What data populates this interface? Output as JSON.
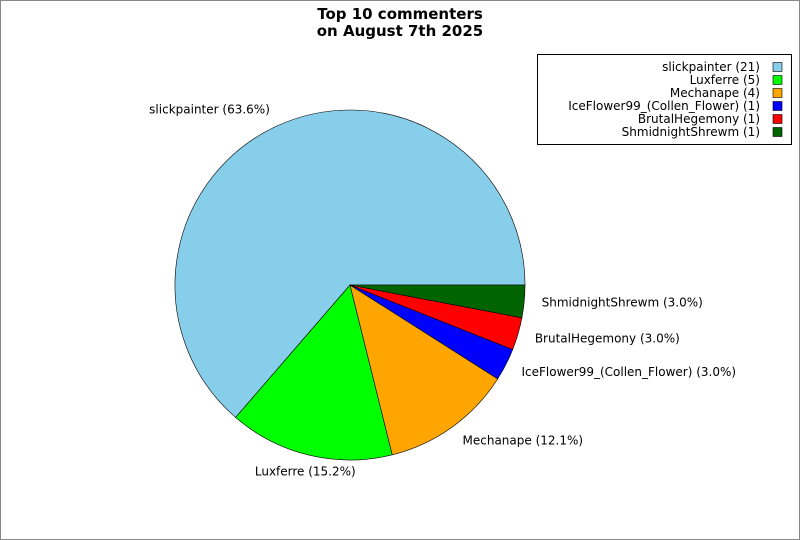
{
  "chart_data": {
    "type": "pie",
    "title": "Top 10 commenters\non August 7th 2025",
    "categories": [
      "slickpainter (21)",
      "Luxferre (5)",
      "Mechanape (4)",
      "IceFlower99_(Collen_Flower) (1)",
      "BrutalHegemony (1)",
      "ShmidnightShrewm (1)"
    ],
    "values": [
      63.6,
      15.2,
      12.1,
      3.0,
      3.0,
      3.0
    ],
    "value_labels": [
      "slickpainter (63.6%)",
      "Luxferre (15.2%)",
      "Mechanape (12.1%)",
      "IceFlower99_(Collen_Flower) (3.0%)",
      "BrutalHegemony (3.0%)",
      "ShmidnightShrewm (3.0%)"
    ],
    "colors": [
      "#87ceeb",
      "#00ff00",
      "#ffa500",
      "#0000ff",
      "#ff0000",
      "#006400"
    ],
    "legend": "upper right"
  }
}
